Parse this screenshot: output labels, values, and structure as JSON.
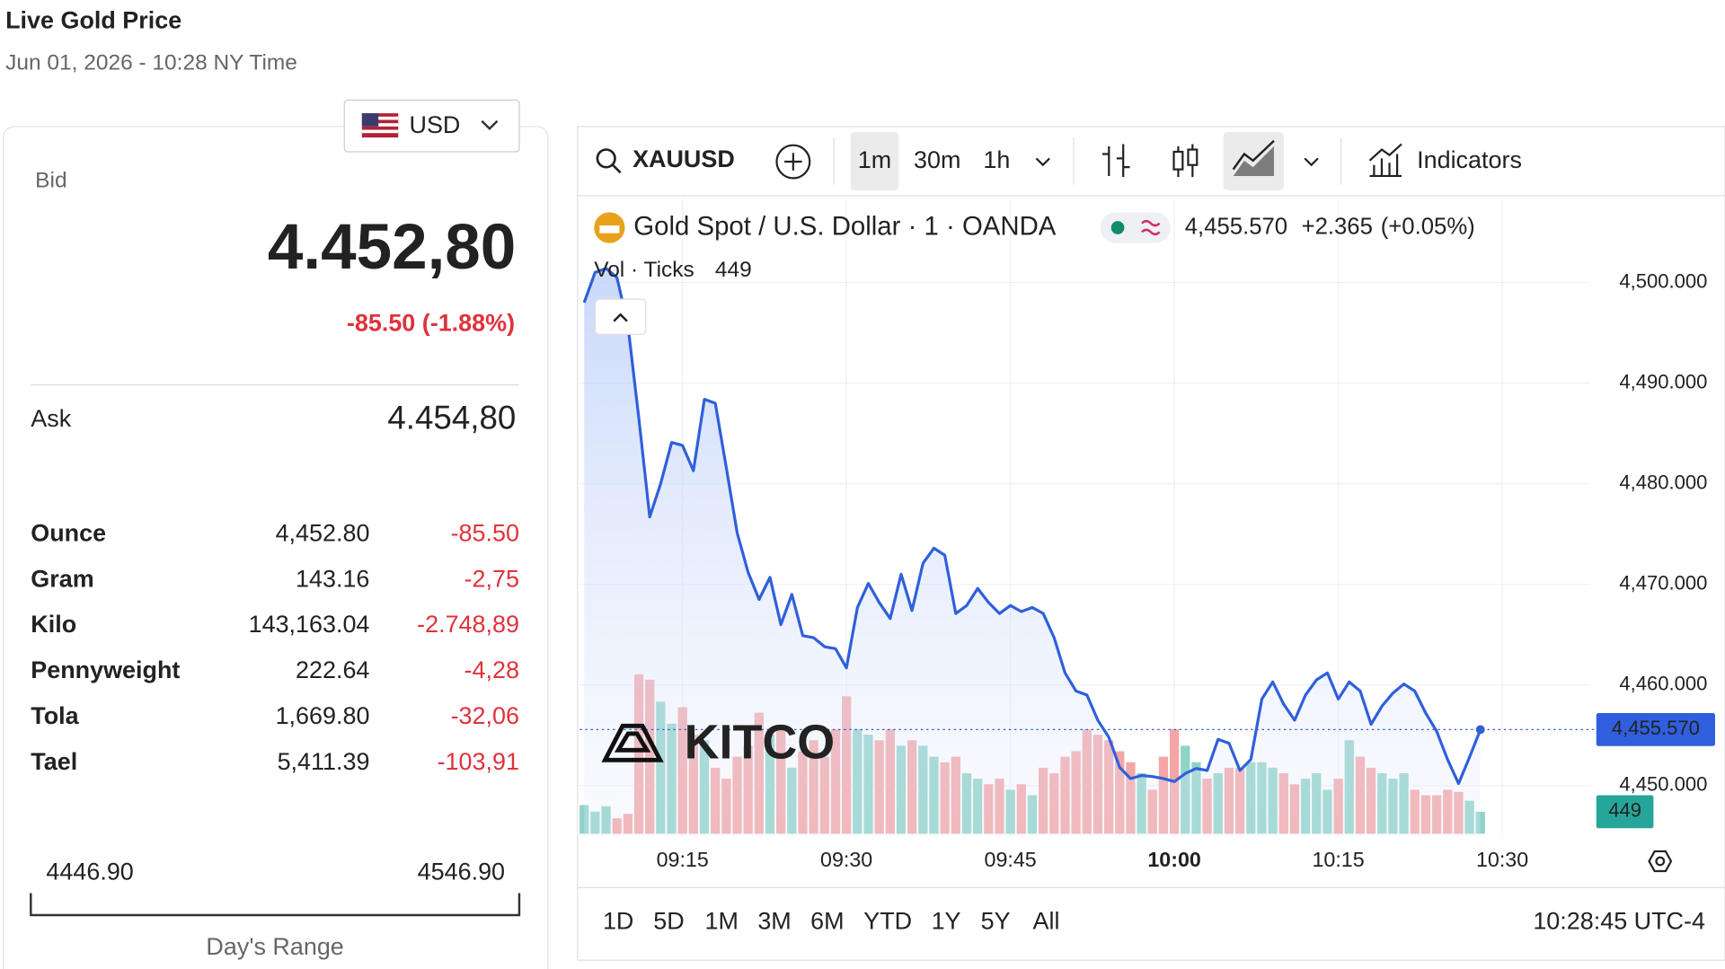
{
  "header": {
    "title": "Live Gold Price",
    "datetime": "Jun 01, 2026 - 10:28 NY Time"
  },
  "currency": {
    "code": "USD"
  },
  "quote": {
    "bid_label": "Bid",
    "bid": "4.452,80",
    "change": "-85.50 (-1.88%)",
    "ask_label": "Ask",
    "ask": "4.454,80"
  },
  "units": {
    "rows": [
      [
        "Ounce",
        "4,452.80",
        "-85.50"
      ],
      [
        "Gram",
        "143.16",
        "-2,75"
      ],
      [
        "Kilo",
        "143,163.04",
        "-2.748,89"
      ],
      [
        "Pennyweight",
        "222.64",
        "-4,28"
      ],
      [
        "Tola",
        "1,669.80",
        "-32,06"
      ],
      [
        "Tael",
        "5,411.39",
        "-103,91"
      ]
    ]
  },
  "range": {
    "low": "4446.90",
    "high": "4546.90",
    "label": "Day's Range"
  },
  "toolbar": {
    "symbol": "XAUUSD",
    "intervals": [
      "1m",
      "30m",
      "1h"
    ],
    "indicators": "Indicators"
  },
  "footer": {
    "periods": [
      "1D",
      "5D",
      "1M",
      "3M",
      "6M",
      "YTD",
      "1Y",
      "5Y",
      "All"
    ],
    "clock": "10:28:45 UTC-4"
  },
  "watermark": "KITCO",
  "chart": {
    "type": "line",
    "x": [
      "09:06",
      "09:07",
      "09:08",
      "09:09",
      "09:10",
      "09:11",
      "09:12",
      "09:13",
      "09:14",
      "09:15",
      "09:16",
      "09:17",
      "09:18",
      "09:19",
      "09:20",
      "09:21",
      "09:22",
      "09:23",
      "09:24",
      "09:25",
      "09:26",
      "09:27",
      "09:28",
      "09:29",
      "09:30",
      "09:31",
      "09:32",
      "09:33",
      "09:34",
      "09:35",
      "09:36",
      "09:37",
      "09:38",
      "09:39",
      "09:40",
      "09:41",
      "09:42",
      "09:43",
      "09:44",
      "09:45",
      "09:46",
      "09:47",
      "09:48",
      "09:49",
      "09:50",
      "09:51",
      "09:52",
      "09:53",
      "09:54",
      "09:55",
      "09:56",
      "09:57",
      "09:58",
      "09:59",
      "10:00",
      "10:01",
      "10:02",
      "10:03",
      "10:04",
      "10:05",
      "10:06",
      "10:07",
      "10:08",
      "10:09",
      "10:10",
      "10:11",
      "10:12",
      "10:13",
      "10:14",
      "10:15",
      "10:16",
      "10:17",
      "10:18",
      "10:19",
      "10:20",
      "10:21",
      "10:22",
      "10:23",
      "10:24",
      "10:25",
      "10:26",
      "10:27",
      "10:28"
    ],
    "xlim": [
      "09:06",
      "10:38"
    ],
    "xticks": [
      "09:15",
      "09:30",
      "09:45",
      "10:00",
      "10:15",
      "10:30"
    ],
    "ylim": [
      4445,
      4508.4
    ],
    "yticks": [
      {
        "value": 4450,
        "label": "4,450.000"
      },
      {
        "value": 4460,
        "label": "4,460.000"
      },
      {
        "value": 4470,
        "label": "4,470.000"
      },
      {
        "value": 4480,
        "label": "4,480.000"
      },
      {
        "value": 4490,
        "label": "4,490.000"
      },
      {
        "value": 4500,
        "label": "4,500.000"
      }
    ],
    "grid": true,
    "series": [
      {
        "name": "Gold Spot / U.S. Dollar · 1 · OANDA",
        "color": "#2f5fdc",
        "values": [
          4498.0,
          4501.0,
          4501.4,
          4500.5,
          4495.8,
          4486.5,
          4476.7,
          4480.0,
          4484.1,
          4483.8,
          4481.3,
          4488.4,
          4488.0,
          4481.6,
          4475.1,
          4471.2,
          4468.5,
          4470.7,
          4466.0,
          4469.0,
          4464.9,
          4464.7,
          4463.8,
          4463.6,
          4461.7,
          4467.7,
          4470.1,
          4468.2,
          4466.6,
          4471.0,
          4467.4,
          4472.1,
          4473.6,
          4472.9,
          4467.1,
          4467.9,
          4469.6,
          4468.2,
          4467.1,
          4467.9,
          4467.3,
          4467.7,
          4467.1,
          4464.7,
          4461.2,
          4459.4,
          4459.0,
          4456.5,
          4454.8,
          4451.8,
          4450.7,
          4451.0,
          4450.9,
          4450.7,
          4450.4,
          4451.2,
          4451.7,
          4451.5,
          4454.6,
          4454.2,
          4451.5,
          4452.6,
          4458.6,
          4460.3,
          4458.1,
          4456.5,
          4459.0,
          4460.5,
          4461.2,
          4458.6,
          4460.3,
          4459.4,
          4456.1,
          4457.9,
          4459.2,
          4460.1,
          4459.4,
          4457.2,
          4455.4,
          4452.6,
          4450.2,
          4452.8,
          4455.57
        ],
        "last_label": "4,455.570",
        "change": "+2.365",
        "change_pct": "(+0.05%)"
      },
      {
        "name": "Vol · Ticks",
        "up_color": "#8fd3c8",
        "down_color": "#f4a6a6",
        "label_color": "#26a69a",
        "values": [
          585,
          450,
          562,
          315,
          405,
          3262,
          3150,
          2700,
          2250,
          2587,
          2025,
          1912,
          1350,
          1125,
          1575,
          1800,
          2475,
          2025,
          2137,
          1350,
          1687,
          1912,
          1575,
          2137,
          2812,
          2137,
          2025,
          1912,
          2137,
          1800,
          1912,
          1800,
          1575,
          1462,
          1575,
          1237,
          1125,
          1012,
          1125,
          900,
          1012,
          787,
          1350,
          1237,
          1575,
          1687,
          2137,
          2025,
          1912,
          1687,
          1462,
          1237,
          900,
          1575,
          2137,
          1800,
          1462,
          1125,
          1237,
          1350,
          1350,
          1462,
          1462,
          1350,
          1237,
          1012,
          1125,
          1237,
          900,
          1125,
          1912,
          1575,
          1350,
          1237,
          1125,
          1237,
          900,
          787,
          787,
          900,
          855,
          675,
          449
        ]
      }
    ]
  }
}
